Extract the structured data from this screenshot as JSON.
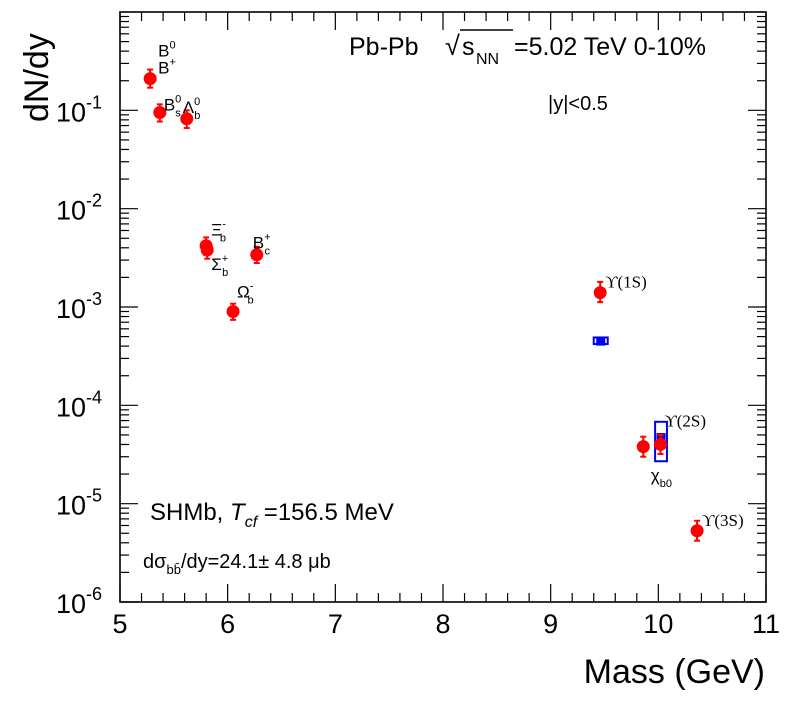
{
  "chart_data": {
    "type": "scatter",
    "title": "Pb-Pb",
    "xlabel": "Mass (GeV)",
    "ylabel": "dN/dy",
    "xlim": [
      5,
      11
    ],
    "ylim_log10": [
      -6,
      0
    ],
    "y_scale": "log",
    "x_ticks": [
      "5",
      "6",
      "7",
      "8",
      "9",
      "10",
      "11"
    ],
    "y_ticks": [
      {
        "base": "10",
        "exp": "-6"
      },
      {
        "base": "10",
        "exp": "-5"
      },
      {
        "base": "10",
        "exp": "-4"
      },
      {
        "base": "10",
        "exp": "-3"
      },
      {
        "base": "10",
        "exp": "-2"
      },
      {
        "base": "10",
        "exp": "-1"
      }
    ],
    "annotations": {
      "system_text": "Pb-Pb",
      "sqrt_symbol": "√",
      "sqrt_s": "s",
      "sqrt_sub": "NN",
      "energy_text": "=5.02 TeV 0-10%",
      "rapidity_text": "|y|<0.5",
      "model_prefix": "SHMb, ",
      "model_T": "T",
      "model_T_sub": "cf",
      "model_value": " =156.5 MeV",
      "xsec_prefix": "dσ",
      "xsec_sub": "bb̄",
      "xsec_value": "/dy=24.1± 4.8 μb"
    },
    "series": [
      {
        "name": "SHMb (red markers)",
        "color": "#ff0000",
        "points": [
          {
            "label": "B",
            "sup": "0",
            "sub": "",
            "x": 5.28,
            "y": 0.21,
            "err_lo": 0.04,
            "err_hi": 0.05
          },
          {
            "label": "B",
            "sup": "+",
            "sub": "",
            "x": 5.28,
            "y": 0.21,
            "err_lo": 0.04,
            "err_hi": 0.05
          },
          {
            "label": "B",
            "sup": "0",
            "sub": "s",
            "x": 5.37,
            "y": 0.095,
            "err_lo": 0.018,
            "err_hi": 0.02
          },
          {
            "label": "Λ",
            "sup": "0",
            "sub": "b",
            "x": 5.62,
            "y": 0.082,
            "err_lo": 0.016,
            "err_hi": 0.018
          },
          {
            "label": "Ξ",
            "sup": "-",
            "sub": "b",
            "x": 5.8,
            "y": 0.0042,
            "err_lo": 0.0008,
            "err_hi": 0.0009
          },
          {
            "label": "Σ",
            "sup": "+",
            "sub": "b",
            "x": 5.81,
            "y": 0.0038,
            "err_lo": 0.0007,
            "err_hi": 0.0008
          },
          {
            "label": "B",
            "sup": "+",
            "sub": "c",
            "x": 6.27,
            "y": 0.0034,
            "err_lo": 0.0006,
            "err_hi": 0.0007
          },
          {
            "label": "Ω",
            "sup": "-",
            "sub": "b",
            "x": 6.05,
            "y": 0.0009,
            "err_lo": 0.00016,
            "err_hi": 0.00018
          },
          {
            "label": "ϒ(1S)",
            "sup": "",
            "sub": "",
            "x": 9.46,
            "y": 0.0014,
            "err_lo": 0.00028,
            "err_hi": 0.0004
          },
          {
            "label": "",
            "sup": "",
            "sub": "",
            "x": 9.86,
            "y": 3.8e-05,
            "err_lo": 8e-06,
            "err_hi": 1e-05
          },
          {
            "label": "ϒ(2S)",
            "sup": "",
            "sub": "",
            "x": 10.02,
            "y": 4e-05,
            "err_lo": 8e-06,
            "err_hi": 1e-05
          },
          {
            "label": "ϒ(3S)",
            "sup": "",
            "sub": "",
            "x": 10.36,
            "y": 5.3e-06,
            "err_lo": 1.1e-06,
            "err_hi": 1.4e-06
          }
        ]
      },
      {
        "name": "Blue boxes",
        "color": "#0000ee",
        "boxes": [
          {
            "label": "",
            "x_lo": 9.4,
            "x_hi": 9.53,
            "y_lo": 0.00042,
            "y_hi": 0.00049,
            "center": 0.00045
          },
          {
            "label": "χ",
            "sub": "b0",
            "x_lo": 9.97,
            "x_hi": 10.08,
            "y_lo": 2.7e-05,
            "y_hi": 6.8e-05,
            "center": 4.7e-05
          }
        ]
      }
    ]
  }
}
